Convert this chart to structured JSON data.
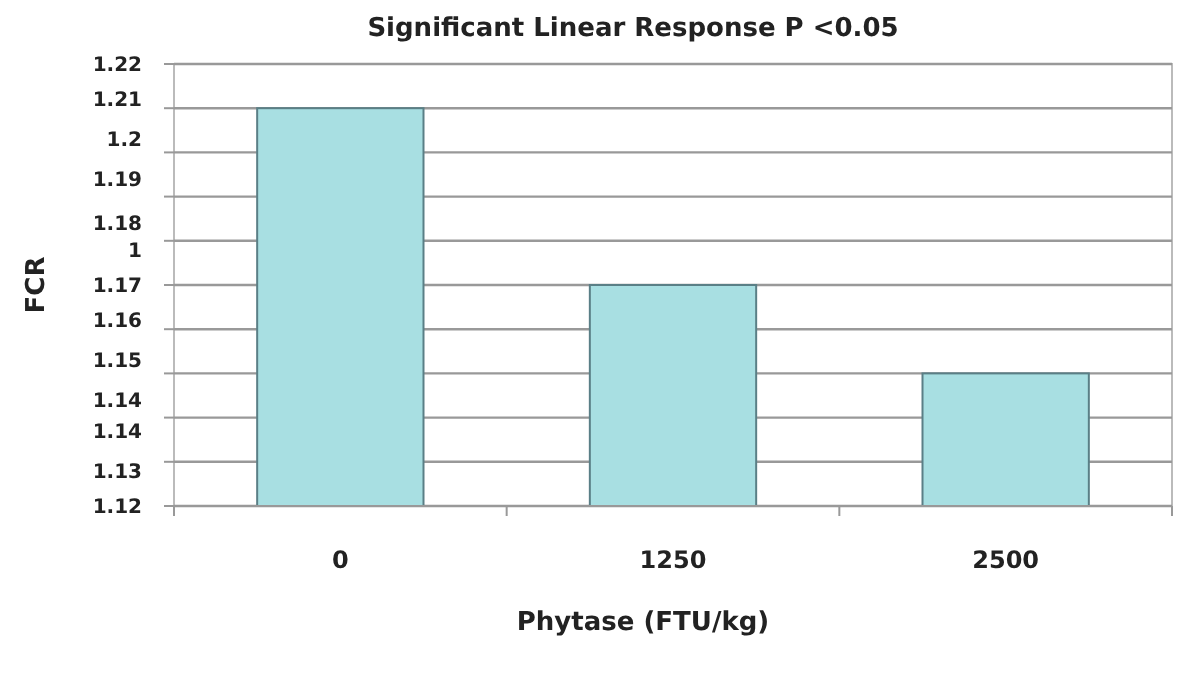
{
  "chart_data": {
    "type": "bar",
    "title": "Significant Linear Response P <0.05",
    "xlabel": "Phytase (FTU/kg)",
    "ylabel": "FCR",
    "categories": [
      "0",
      "1250",
      "2500"
    ],
    "values": [
      1.21,
      1.17,
      1.15
    ],
    "color": "#a8dfe2",
    "ylim": [
      1.12,
      1.22
    ],
    "yticks": [
      {
        "value": 1.12,
        "label": null
      },
      {
        "value": 1.13,
        "label": null
      },
      {
        "value": 1.14,
        "label": null
      },
      {
        "value": 1.15,
        "label": null
      },
      {
        "value": 1.16,
        "label": null
      },
      {
        "value": 1.17,
        "label": null
      },
      {
        "value": 1.18,
        "label": null
      },
      {
        "value": 1.19,
        "label": null
      },
      {
        "value": 1.2,
        "label": null
      },
      {
        "value": 1.21,
        "label": null
      },
      {
        "value": 1.22,
        "label": null
      },
      {
        "value": 1.22,
        "label": "1.22"
      },
      {
        "value": 1.212,
        "label": "1.21"
      },
      {
        "value": 1.203,
        "label": "1.2"
      },
      {
        "value": 1.194,
        "label": "1.19"
      },
      {
        "value": 1.184,
        "label": "1.18"
      },
      {
        "value": 1.178,
        "label": "1"
      },
      {
        "value": 1.17,
        "label": "1.17"
      },
      {
        "value": 1.162,
        "label": "1.16"
      },
      {
        "value": 1.153,
        "label": "1.15"
      },
      {
        "value": 1.144,
        "label": "1.14"
      },
      {
        "value": 1.137,
        "label": "1.14"
      },
      {
        "value": 1.128,
        "label": "1.13"
      },
      {
        "value": 1.12,
        "label": "1.12"
      }
    ],
    "grid": "y"
  }
}
